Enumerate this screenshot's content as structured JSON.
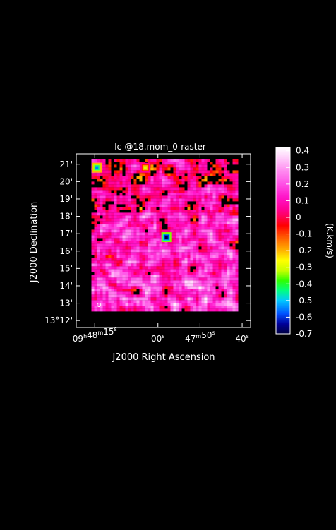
{
  "chart_data": {
    "type": "heatmap",
    "title": "lc-@18.mom_0-raster",
    "xlabel": "J2000 Right Ascension",
    "ylabel": "J2000 Declination",
    "x_ticks": [
      {
        "ra_sec_offset": 15,
        "parts": [
          {
            "t": "09",
            "sup": false
          },
          {
            "t": "h",
            "sup": true
          },
          {
            "t": "48",
            "sup": false
          },
          {
            "t": "m",
            "sup": true
          },
          {
            "t": "15",
            "sup": false
          },
          {
            "t": "s",
            "sup": true
          }
        ]
      },
      {
        "ra_sec_offset": 0,
        "parts": [
          {
            "t": "00",
            "sup": false
          },
          {
            "t": "s",
            "sup": true
          }
        ]
      },
      {
        "ra_sec_offset": -10,
        "parts": [
          {
            "t": "47",
            "sup": false
          },
          {
            "t": "m",
            "sup": true
          },
          {
            "t": "50",
            "sup": false
          },
          {
            "t": "s",
            "sup": true
          }
        ]
      },
      {
        "ra_sec_offset": -20,
        "parts": [
          {
            "t": "40",
            "sup": false
          },
          {
            "t": "s",
            "sup": true
          }
        ]
      }
    ],
    "y_ticks": [
      {
        "dec_arcmin": 12,
        "label": "13°12'"
      },
      {
        "dec_arcmin": 13,
        "label": "13'"
      },
      {
        "dec_arcmin": 14,
        "label": "14'"
      },
      {
        "dec_arcmin": 15,
        "label": "15'"
      },
      {
        "dec_arcmin": 16,
        "label": "16'"
      },
      {
        "dec_arcmin": 17,
        "label": "17'"
      },
      {
        "dec_arcmin": 18,
        "label": "18'"
      },
      {
        "dec_arcmin": 19,
        "label": "19'"
      },
      {
        "dec_arcmin": 20,
        "label": "20'"
      },
      {
        "dec_arcmin": 21,
        "label": "21'"
      }
    ],
    "x_range_ra_sec_offset": [
      19.4,
      -22
    ],
    "y_range_dec_arcmin": [
      11.6,
      21.6
    ],
    "data_extent": {
      "ra_sec_offset": [
        15.8,
        -19
      ],
      "dec_arcmin": [
        12.6,
        21.3
      ]
    },
    "colorbar": {
      "label": "(K.km/s)",
      "min": -0.7,
      "max": 0.42,
      "ticks": [
        "0.4",
        "0.3",
        "0.2",
        "0.1",
        "0",
        "-0.1",
        "-0.2",
        "-0.3",
        "-0.4",
        "-0.5",
        "-0.6",
        "-0.7"
      ],
      "colormap": [
        [
          -0.7,
          "#000040"
        ],
        [
          -0.64,
          "#00009a"
        ],
        [
          -0.58,
          "#0050ff"
        ],
        [
          -0.5,
          "#00c8ff"
        ],
        [
          -0.44,
          "#00ff80"
        ],
        [
          -0.38,
          "#30ff00"
        ],
        [
          -0.32,
          "#c8ff00"
        ],
        [
          -0.26,
          "#ffff00"
        ],
        [
          -0.2,
          "#ffb400"
        ],
        [
          -0.12,
          "#ff5a00"
        ],
        [
          -0.05,
          "#ff0000"
        ],
        [
          0.0,
          "#ff0050"
        ],
        [
          0.05,
          "#ff0096"
        ],
        [
          0.12,
          "#ff14c8"
        ],
        [
          0.2,
          "#ff50e6"
        ],
        [
          0.28,
          "#ff8cf0"
        ],
        [
          0.35,
          "#ffc8fa"
        ],
        [
          0.42,
          "#ffffff"
        ]
      ]
    },
    "features": [
      {
        "kind": "emission",
        "ra_sec_offset": 14.5,
        "dec_arcmin": 20.8,
        "peak": -0.55
      },
      {
        "kind": "emission",
        "ra_sec_offset": 3.0,
        "dec_arcmin": 20.8,
        "peak": -0.3
      },
      {
        "kind": "emission",
        "ra_sec_offset": -2.0,
        "dec_arcmin": 16.8,
        "peak": -0.7
      },
      {
        "kind": "beam",
        "ra_sec_offset": 14.0,
        "dec_arcmin": 12.9
      }
    ],
    "grid": false
  }
}
